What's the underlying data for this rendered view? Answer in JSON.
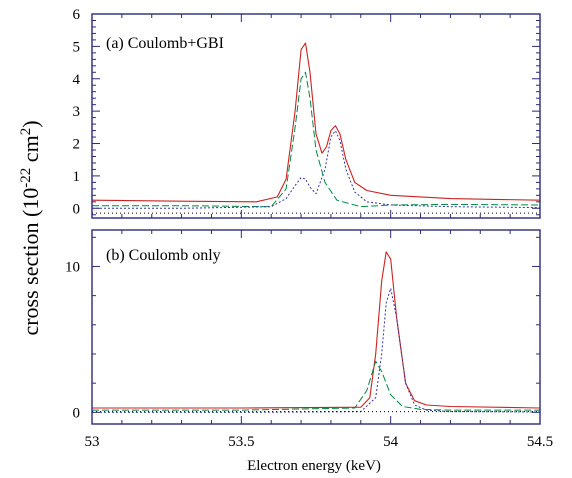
{
  "chart_data": {
    "type": "line",
    "xlabel": "Electron energy (keV)",
    "ylabel_parts": {
      "main": "cross section (10",
      "exp1": "-22",
      "mid": " cm",
      "exp2": "2",
      "end": ")"
    },
    "xlim": [
      53,
      54.5
    ],
    "x_ticks": [
      "53",
      "53.5",
      "54",
      "54.5"
    ],
    "colors": {
      "frame": "#2a2a7a",
      "red": "#cc2222",
      "green": "#008844",
      "blue": "#3333aa",
      "black": "#000000"
    },
    "panels": [
      {
        "label": "(a) Coulomb+GBI",
        "ylim": [
          -0.3,
          6
        ],
        "y_ticks": [
          0,
          1,
          2,
          3,
          4,
          5,
          6
        ],
        "series": [
          {
            "style": "red-solid",
            "x": [
              53.0,
              53.3,
              53.55,
              53.62,
              53.65,
              53.68,
              53.7,
              53.715,
              53.73,
              53.75,
              53.77,
              53.785,
              53.8,
              53.815,
              53.83,
              53.85,
              53.88,
              53.92,
              54.0,
              54.2,
              54.5
            ],
            "y": [
              0.25,
              0.22,
              0.2,
              0.35,
              0.9,
              3.0,
              4.9,
              5.1,
              4.2,
              2.3,
              1.7,
              1.9,
              2.4,
              2.55,
              2.3,
              1.5,
              0.8,
              0.55,
              0.4,
              0.3,
              0.25
            ]
          },
          {
            "style": "green-dashed",
            "x": [
              53.0,
              53.3,
              53.6,
              53.65,
              53.68,
              53.7,
              53.715,
              53.73,
              53.75,
              53.78,
              53.82,
              53.9,
              54.0,
              54.2,
              54.5
            ],
            "y": [
              0.08,
              0.08,
              0.05,
              0.6,
              2.5,
              4.0,
              4.2,
              3.4,
              1.8,
              0.8,
              0.25,
              0.05,
              0.1,
              0.12,
              0.1
            ]
          },
          {
            "style": "blue-dotted",
            "x": [
              53.0,
              53.3,
              53.6,
              53.65,
              53.68,
              53.7,
              53.715,
              53.73,
              53.75,
              53.78,
              53.8,
              53.815,
              53.83,
              53.85,
              53.88,
              53.92,
              54.0,
              54.2,
              54.5
            ],
            "y": [
              0.0,
              0.0,
              0.05,
              0.3,
              0.7,
              0.95,
              0.9,
              0.65,
              0.45,
              1.2,
              2.2,
              2.4,
              2.1,
              1.2,
              0.5,
              0.2,
              0.1,
              0.05,
              0.02
            ]
          },
          {
            "style": "black-dotted",
            "x": [
              53.0,
              53.5,
              54.0,
              54.5
            ],
            "y": [
              -0.15,
              -0.15,
              -0.15,
              -0.15
            ]
          }
        ]
      },
      {
        "label": "(b) Coulomb only",
        "ylim": [
          -0.8,
          12.5
        ],
        "y_ticks": [
          0,
          10
        ],
        "series": [
          {
            "style": "red-solid",
            "x": [
              53.0,
              53.5,
              53.9,
              53.93,
              53.95,
              53.97,
              53.985,
              54.0,
              54.02,
              54.05,
              54.08,
              54.12,
              54.2,
              54.5
            ],
            "y": [
              0.3,
              0.3,
              0.35,
              1.0,
              4.0,
              9.0,
              11.0,
              10.5,
              6.5,
              2.0,
              0.8,
              0.5,
              0.4,
              0.3
            ]
          },
          {
            "style": "blue-dotted",
            "x": [
              53.0,
              53.5,
              53.9,
              53.95,
              53.97,
              53.985,
              54.0,
              54.02,
              54.05,
              54.08,
              54.12,
              54.2,
              54.5
            ],
            "y": [
              0.0,
              0.0,
              0.05,
              1.0,
              4.0,
              7.5,
              8.5,
              6.5,
              2.0,
              0.5,
              0.15,
              0.05,
              0.02
            ]
          },
          {
            "style": "green-dashed",
            "x": [
              53.0,
              53.5,
              53.88,
              53.92,
              53.95,
              53.97,
              54.0,
              54.04,
              54.1,
              54.2,
              54.5
            ],
            "y": [
              0.15,
              0.15,
              0.3,
              1.5,
              3.5,
              2.8,
              1.2,
              0.4,
              0.2,
              0.15,
              0.15
            ]
          },
          {
            "style": "black-dotted",
            "x": [
              53.0,
              53.5,
              54.0,
              54.5
            ],
            "y": [
              0.05,
              0.05,
              0.05,
              0.05
            ]
          }
        ]
      }
    ]
  }
}
